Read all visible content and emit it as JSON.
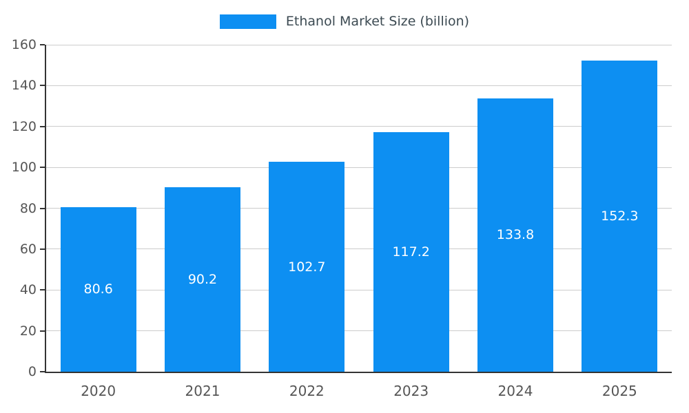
{
  "legend": {
    "label": "Ethanol Market Size (billion)"
  },
  "colors": {
    "bar": "#0d8ff2",
    "grid": "#cccccc",
    "axis": "#333333",
    "tick_text": "#555555",
    "legend_text": "#3c4a52",
    "value_label": "#ffffff"
  },
  "chart_data": {
    "type": "bar",
    "title": "Ethanol Market Size (billion)",
    "categories": [
      "2020",
      "2021",
      "2022",
      "2023",
      "2024",
      "2025"
    ],
    "values": [
      80.6,
      90.2,
      102.7,
      117.2,
      133.8,
      152.3
    ],
    "value_labels": [
      "80.6",
      "90.2",
      "102.7",
      "117.2",
      "133.8",
      "152.3"
    ],
    "xlabel": "",
    "ylabel": "",
    "ylim": [
      0,
      160
    ],
    "yticks": [
      0,
      20,
      40,
      60,
      80,
      100,
      120,
      140,
      160
    ],
    "grid": true,
    "legend_position": "top"
  }
}
